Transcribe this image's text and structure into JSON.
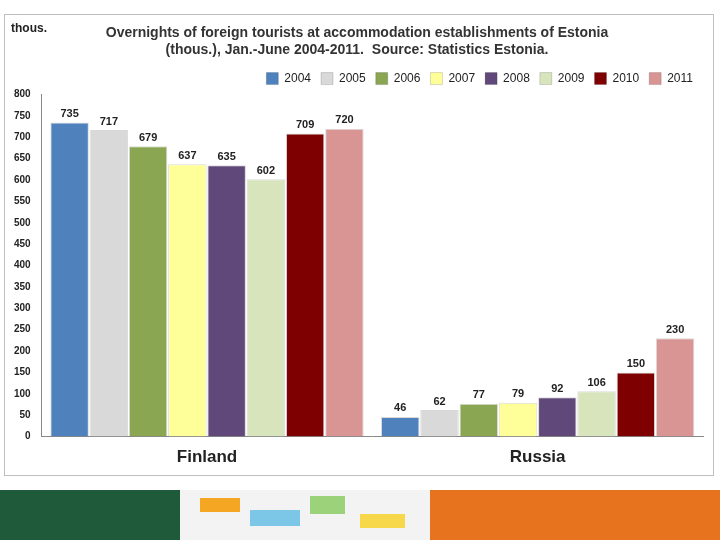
{
  "chart_data": {
    "type": "bar",
    "title": [
      "Overnights of foreign tourists at accommodation establishments of Estonia",
      "(thous.), Jan.-June 2004-2011.  Source: Statistics Estonia."
    ],
    "y_label": "thous.",
    "categories": [
      "Finland",
      "Russia"
    ],
    "series": [
      {
        "name": "2004",
        "color": "#4f81bd",
        "values": [
          735,
          46
        ]
      },
      {
        "name": "2005",
        "color": "#d9d9d9",
        "values": [
          717,
          62
        ]
      },
      {
        "name": "2006",
        "color": "#8aa652",
        "values": [
          679,
          77
        ]
      },
      {
        "name": "2007",
        "color": "#ffff99",
        "values": [
          637,
          79
        ]
      },
      {
        "name": "2008",
        "color": "#60497a",
        "values": [
          635,
          92
        ]
      },
      {
        "name": "2009",
        "color": "#d7e4bc",
        "values": [
          602,
          106
        ]
      },
      {
        "name": "2010",
        "color": "#7f0000",
        "values": [
          709,
          150
        ]
      },
      {
        "name": "2011",
        "color": "#d99594",
        "values": [
          720,
          230
        ]
      }
    ],
    "ylim": [
      0,
      800
    ],
    "yticks": [
      0,
      50,
      100,
      150,
      200,
      250,
      300,
      350,
      400,
      450,
      500,
      550,
      600,
      650,
      700,
      750,
      800
    ],
    "grid": false,
    "legend": "top",
    "data_labels": true
  }
}
